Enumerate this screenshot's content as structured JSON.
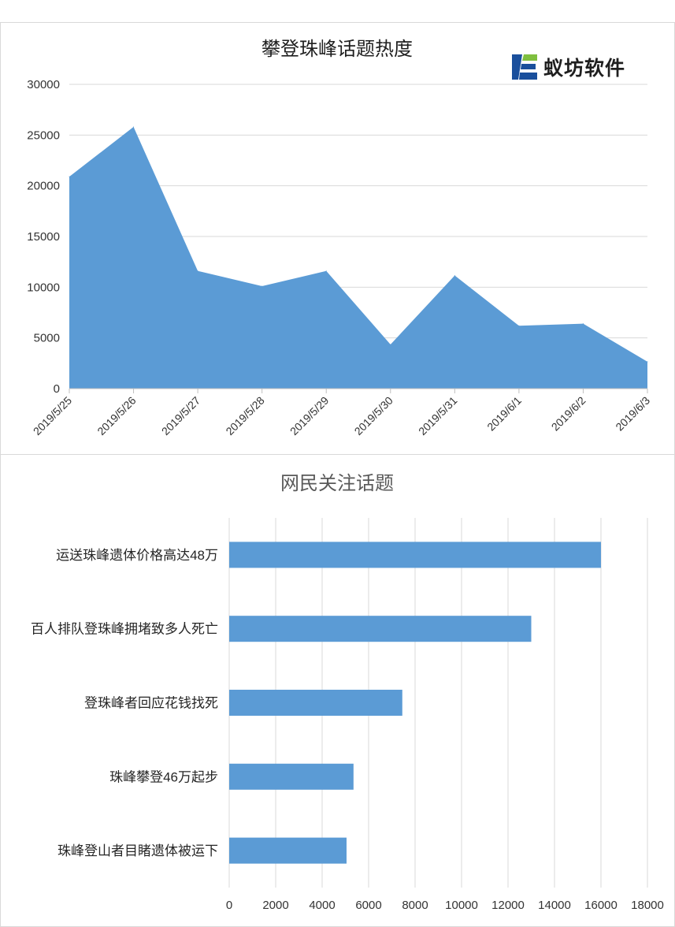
{
  "logo": {
    "text": "蚁坊软件",
    "colors": [
      "#1a4f9c",
      "#7fbf3f"
    ]
  },
  "chart_data": [
    {
      "type": "area",
      "title": "攀登珠峰话题热度",
      "x": [
        "2019/5/25",
        "2019/5/26",
        "2019/5/27",
        "2019/5/28",
        "2019/5/29",
        "2019/5/30",
        "2019/5/31",
        "2019/6/1",
        "2019/6/2",
        "2019/6/3"
      ],
      "series": [
        {
          "values": [
            20900,
            25800,
            11600,
            10100,
            11600,
            4350,
            11150,
            6200,
            6400,
            2650
          ],
          "color": "#5b9bd5"
        }
      ],
      "ylim": [
        0,
        30000
      ],
      "yticks": [
        0,
        5000,
        10000,
        15000,
        20000,
        25000,
        30000
      ],
      "grid": true,
      "legend": "none"
    },
    {
      "type": "bar",
      "orientation": "horizontal",
      "title": "网民关注话题",
      "categories": [
        "运送珠峰遗体价格高达48万",
        "百人排队登珠峰拥堵致多人死亡",
        "登珠峰者回应花钱找死",
        "珠峰攀登46万起步",
        "珠峰登山者目睹遗体被运下"
      ],
      "values": [
        16000,
        13000,
        7450,
        5350,
        5050
      ],
      "color": "#5b9bd5",
      "xlim": [
        0,
        18000
      ],
      "xticks": [
        0,
        2000,
        4000,
        6000,
        8000,
        10000,
        12000,
        14000,
        16000,
        18000
      ],
      "grid": true,
      "legend": "none"
    }
  ]
}
